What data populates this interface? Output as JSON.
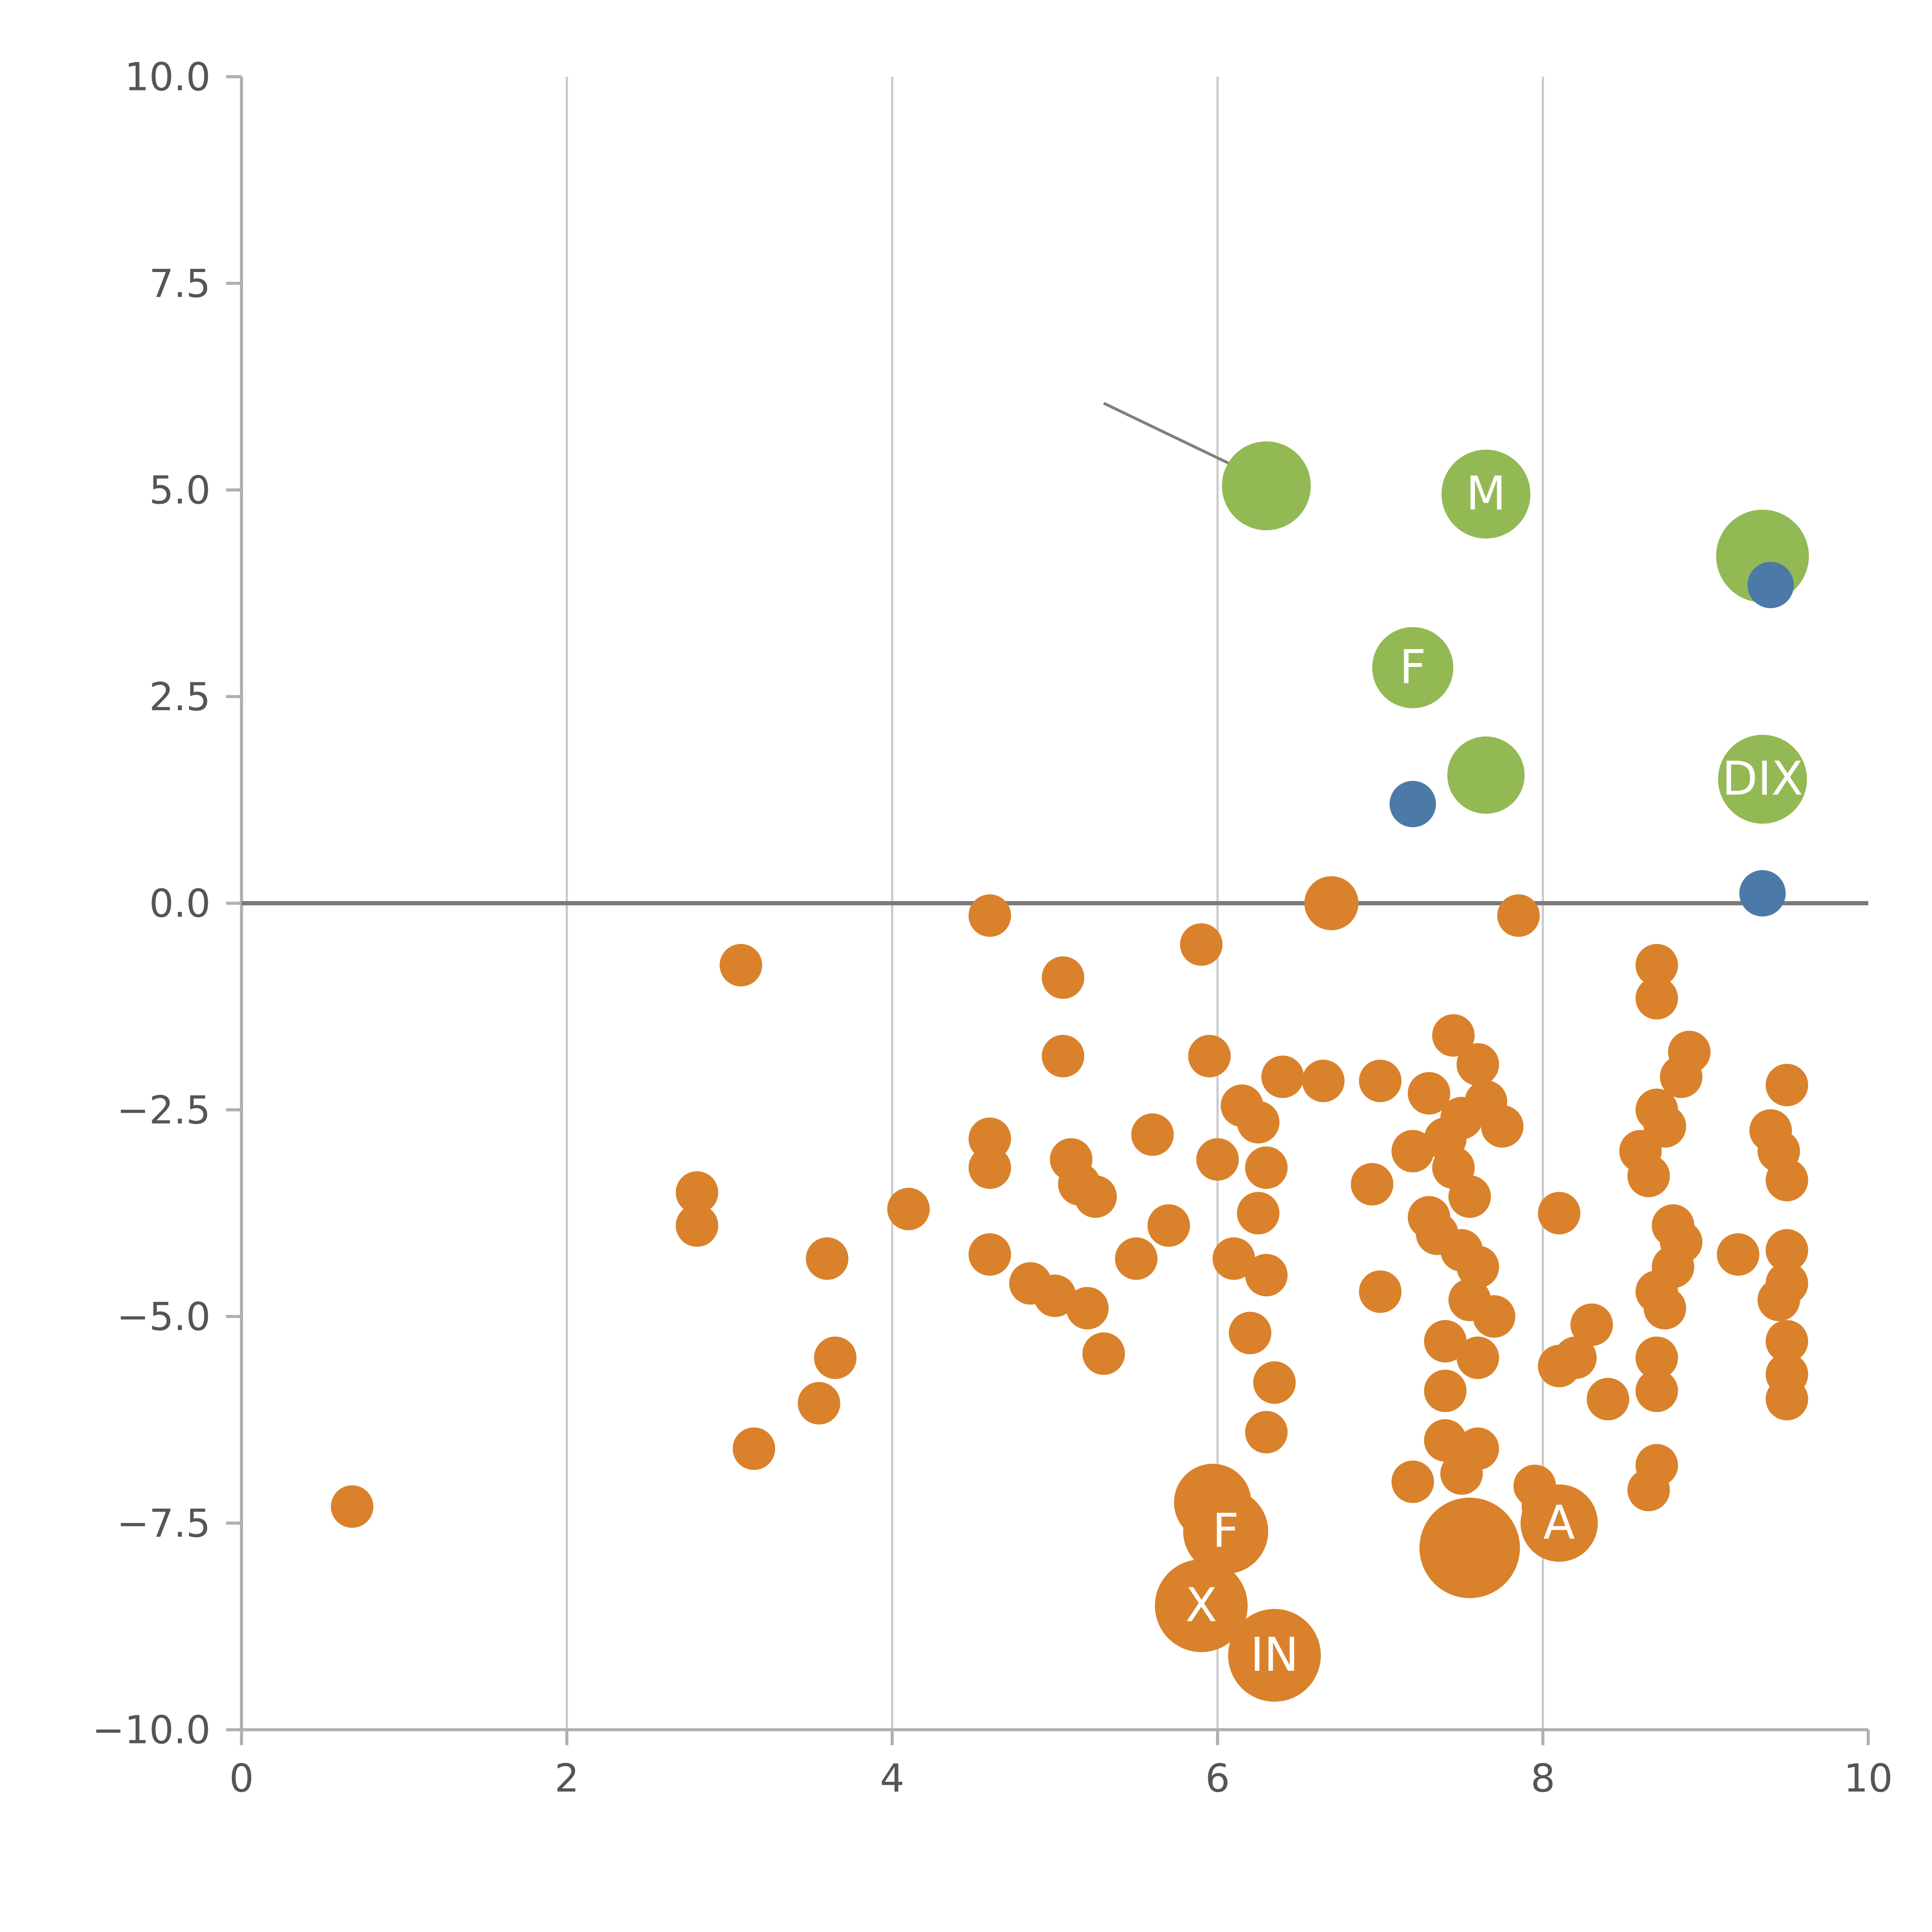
{
  "chart_data": {
    "type": "scatter",
    "title": "",
    "xlabel": "",
    "ylabel": "",
    "xlim": [
      0,
      10
    ],
    "ylim": [
      -10,
      10
    ],
    "grid": "vertical-only",
    "legend": "none",
    "x_ticks": [
      0,
      2,
      4,
      6,
      8,
      10
    ],
    "x_tick_labels": [
      "0",
      "2",
      "4",
      "6",
      "8",
      "10"
    ],
    "y_ticks": [
      10.0,
      7.5,
      5.0,
      2.5,
      0.0,
      -2.5,
      -5.0,
      -7.5,
      -10.0
    ],
    "y_tick_labels": [
      "10.0",
      "7.5",
      "5.0",
      "2.5",
      "0.0",
      "−2.5",
      "−5.0",
      "−7.5",
      "−10.0"
    ],
    "gridlines_x": [
      2,
      4,
      6,
      8
    ],
    "zero_line_y": 0,
    "annotation_line": {
      "x1": 5.3,
      "y1": 6.05,
      "x2": 6.22,
      "y2": 5.18
    },
    "colors": {
      "green": "#93B954",
      "blue": "#4B79A8",
      "orange": "#D9822B",
      "grid": "#c9c9c9",
      "zero_line": "#7a7a7a",
      "axis": "#b0b0b0",
      "tick_label": "#555555",
      "bubble_label": "#ffffff",
      "annotation": "#808080"
    },
    "point_format": [
      "x",
      "y",
      "r",
      "label"
    ],
    "series": [
      {
        "name": "green-bubbles",
        "color_key": "green",
        "points": [
          [
            6.3,
            5.05,
            23,
            ""
          ],
          [
            7.65,
            4.95,
            23,
            "M"
          ],
          [
            9.35,
            4.2,
            24,
            ""
          ],
          [
            7.2,
            2.85,
            21,
            "F"
          ],
          [
            7.65,
            1.55,
            20,
            ""
          ],
          [
            9.35,
            1.5,
            23,
            "DIX"
          ]
        ]
      },
      {
        "name": "blue-bubbles",
        "color_key": "blue",
        "points": [
          [
            9.4,
            3.85,
            12,
            ""
          ],
          [
            7.2,
            1.2,
            12,
            ""
          ],
          [
            9.35,
            0.12,
            12,
            ""
          ]
        ]
      },
      {
        "name": "orange-bubbles",
        "color_key": "orange",
        "points": [
          [
            0.68,
            -7.3,
            11,
            ""
          ],
          [
            3.07,
            -0.75,
            11,
            ""
          ],
          [
            2.8,
            -3.5,
            11,
            ""
          ],
          [
            2.8,
            -3.9,
            11,
            ""
          ],
          [
            3.15,
            -6.6,
            11,
            ""
          ],
          [
            3.55,
            -6.05,
            11,
            ""
          ],
          [
            3.6,
            -4.3,
            11,
            ""
          ],
          [
            3.65,
            -5.5,
            11,
            ""
          ],
          [
            4.1,
            -3.7,
            11,
            ""
          ],
          [
            4.6,
            -0.15,
            11,
            ""
          ],
          [
            4.6,
            -2.85,
            11,
            ""
          ],
          [
            4.6,
            -3.2,
            11,
            ""
          ],
          [
            4.6,
            -4.25,
            11,
            ""
          ],
          [
            4.85,
            -4.6,
            11,
            ""
          ],
          [
            5.0,
            -4.75,
            11,
            ""
          ],
          [
            5.05,
            -0.9,
            11,
            ""
          ],
          [
            5.05,
            -1.85,
            11,
            ""
          ],
          [
            5.1,
            -3.1,
            11,
            ""
          ],
          [
            5.15,
            -3.4,
            11,
            ""
          ],
          [
            5.2,
            -4.9,
            11,
            ""
          ],
          [
            5.25,
            -3.55,
            11,
            ""
          ],
          [
            5.3,
            -5.45,
            11,
            ""
          ],
          [
            5.5,
            -4.3,
            11,
            ""
          ],
          [
            5.6,
            -2.8,
            11,
            ""
          ],
          [
            5.7,
            -3.9,
            11,
            ""
          ],
          [
            5.9,
            -0.5,
            11,
            ""
          ],
          [
            5.95,
            -1.85,
            11,
            ""
          ],
          [
            6.0,
            -3.1,
            11,
            ""
          ],
          [
            6.1,
            -4.3,
            11,
            ""
          ],
          [
            6.15,
            -2.45,
            11,
            ""
          ],
          [
            6.2,
            -5.2,
            11,
            ""
          ],
          [
            6.25,
            -2.65,
            11,
            ""
          ],
          [
            6.25,
            -3.75,
            11,
            ""
          ],
          [
            6.3,
            -3.2,
            11,
            ""
          ],
          [
            6.3,
            -4.5,
            11,
            ""
          ],
          [
            6.3,
            -6.4,
            11,
            ""
          ],
          [
            6.35,
            -5.8,
            11,
            ""
          ],
          [
            6.4,
            -2.1,
            11,
            ""
          ],
          [
            6.65,
            -2.15,
            11,
            ""
          ],
          [
            7.0,
            -2.15,
            11,
            ""
          ],
          [
            6.95,
            -3.4,
            11,
            ""
          ],
          [
            7.0,
            -4.7,
            11,
            ""
          ],
          [
            7.2,
            -3.0,
            11,
            ""
          ],
          [
            7.2,
            -7.0,
            11,
            ""
          ],
          [
            7.3,
            -2.3,
            11,
            ""
          ],
          [
            7.3,
            -3.8,
            11,
            ""
          ],
          [
            7.35,
            -4.0,
            11,
            ""
          ],
          [
            7.4,
            -2.85,
            11,
            ""
          ],
          [
            7.4,
            -5.3,
            11,
            ""
          ],
          [
            7.4,
            -5.9,
            11,
            ""
          ],
          [
            7.4,
            -6.5,
            11,
            ""
          ],
          [
            7.45,
            -1.6,
            11,
            ""
          ],
          [
            7.45,
            -3.2,
            11,
            ""
          ],
          [
            7.5,
            -2.6,
            11,
            ""
          ],
          [
            7.5,
            -4.2,
            11,
            ""
          ],
          [
            7.5,
            -6.9,
            11,
            ""
          ],
          [
            7.55,
            -3.55,
            11,
            ""
          ],
          [
            7.55,
            -4.8,
            11,
            ""
          ],
          [
            7.6,
            -1.95,
            11,
            ""
          ],
          [
            7.6,
            -4.4,
            11,
            ""
          ],
          [
            7.6,
            -5.5,
            11,
            ""
          ],
          [
            7.6,
            -6.6,
            11,
            ""
          ],
          [
            7.65,
            -2.4,
            11,
            ""
          ],
          [
            7.7,
            -5.0,
            11,
            ""
          ],
          [
            7.75,
            -2.7,
            11,
            ""
          ],
          [
            7.85,
            -0.15,
            11,
            ""
          ],
          [
            7.95,
            -7.05,
            11,
            ""
          ],
          [
            8.0,
            -7.3,
            11,
            ""
          ],
          [
            8.1,
            -3.75,
            11,
            ""
          ],
          [
            8.1,
            -5.6,
            11,
            ""
          ],
          [
            8.2,
            -5.5,
            11,
            ""
          ],
          [
            8.3,
            -5.1,
            11,
            ""
          ],
          [
            8.4,
            -6.0,
            11,
            ""
          ],
          [
            8.6,
            -3.0,
            11,
            ""
          ],
          [
            8.65,
            -3.3,
            11,
            ""
          ],
          [
            8.65,
            -7.1,
            11,
            ""
          ],
          [
            8.7,
            -0.75,
            11,
            ""
          ],
          [
            8.7,
            -1.15,
            11,
            ""
          ],
          [
            8.7,
            -2.5,
            11,
            ""
          ],
          [
            8.7,
            -4.7,
            11,
            ""
          ],
          [
            8.7,
            -5.5,
            11,
            ""
          ],
          [
            8.7,
            -5.9,
            11,
            ""
          ],
          [
            8.7,
            -6.8,
            11,
            ""
          ],
          [
            8.75,
            -2.7,
            11,
            ""
          ],
          [
            8.75,
            -4.9,
            11,
            ""
          ],
          [
            8.8,
            -3.9,
            11,
            ""
          ],
          [
            8.8,
            -4.4,
            11,
            ""
          ],
          [
            8.85,
            -2.1,
            11,
            ""
          ],
          [
            8.85,
            -4.1,
            11,
            ""
          ],
          [
            8.9,
            -1.8,
            11,
            ""
          ],
          [
            9.2,
            -4.25,
            11,
            ""
          ],
          [
            9.4,
            -2.75,
            11,
            ""
          ],
          [
            9.45,
            -3.0,
            11,
            ""
          ],
          [
            9.45,
            -4.8,
            11,
            ""
          ],
          [
            9.5,
            -2.2,
            11,
            ""
          ],
          [
            9.5,
            -3.35,
            11,
            ""
          ],
          [
            9.5,
            -4.2,
            11,
            ""
          ],
          [
            9.5,
            -4.6,
            11,
            ""
          ],
          [
            9.5,
            -5.3,
            11,
            ""
          ],
          [
            9.5,
            -5.7,
            11,
            ""
          ],
          [
            9.5,
            -6.0,
            11,
            ""
          ],
          [
            6.7,
            0.0,
            14,
            ""
          ],
          [
            5.97,
            -7.25,
            20,
            ""
          ],
          [
            6.05,
            -7.6,
            22,
            "F"
          ],
          [
            5.9,
            -8.5,
            24,
            "X"
          ],
          [
            6.35,
            -9.1,
            24,
            "IN"
          ],
          [
            7.55,
            -7.8,
            26,
            ""
          ],
          [
            8.1,
            -7.5,
            20,
            "A"
          ]
        ]
      }
    ]
  }
}
